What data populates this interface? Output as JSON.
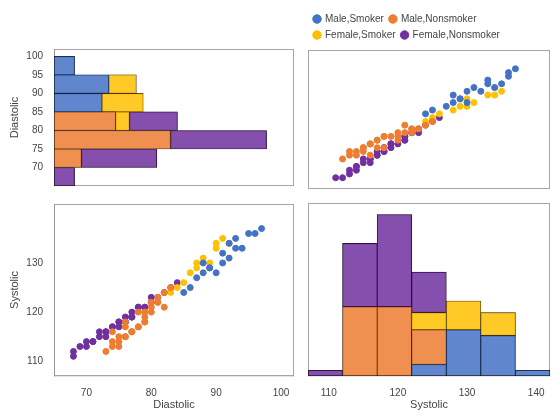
{
  "chart_data": [
    {
      "type": "histogram",
      "orientation": "horizontal",
      "stacked": true,
      "bins": [
        65,
        70,
        75,
        80,
        85,
        90,
        95,
        100
      ],
      "series": [
        {
          "color": "#4472C4",
          "values": [
            0,
            0,
            0,
            0,
            7,
            8,
            3
          ]
        },
        {
          "color": "#ED7D31",
          "values": [
            0,
            4,
            17,
            9,
            0,
            0,
            0
          ]
        },
        {
          "color": "#FFC000",
          "values": [
            0,
            0,
            0,
            2,
            6,
            4,
            0
          ]
        },
        {
          "color": "#7030A0",
          "values": [
            3,
            11,
            14,
            7,
            0,
            0,
            0
          ]
        }
      ],
      "ylabel": "Diastolic",
      "ylim": [
        65,
        102
      ],
      "yticks": [
        70,
        75,
        80,
        85,
        90,
        95,
        100
      ],
      "xlim": [
        0,
        35
      ],
      "tick_labels": "y",
      "grid": false
    },
    {
      "type": "scatter",
      "series": [
        {
          "name": "Male,Smoker",
          "color": "#4472C4",
          "x": [
            130,
            134,
            136,
            128,
            125,
            132,
            135,
            127,
            133,
            129,
            136,
            124,
            131,
            128,
            130,
            137,
            133,
            129
          ],
          "values": [
            88,
            92,
            95,
            90,
            86,
            91,
            93,
            87,
            94,
            89,
            96,
            85,
            92,
            88,
            91,
            97,
            93,
            89
          ]
        },
        {
          "name": "Male,Nonsmoker",
          "color": "#ED7D31",
          "x": [
            118,
            122,
            116,
            120,
            117,
            123,
            120,
            115,
            124,
            121,
            118,
            116,
            113,
            122,
            117,
            115,
            121,
            118,
            114,
            120,
            116,
            112,
            122,
            117,
            115,
            125,
            114,
            119,
            116,
            113
          ],
          "values": [
            76,
            80,
            74,
            78,
            76,
            81,
            79,
            75,
            82,
            80,
            79,
            77,
            74,
            81,
            78,
            76,
            82,
            79,
            75,
            80,
            77,
            73,
            81,
            78,
            76,
            83,
            74,
            79,
            77,
            75
          ]
        },
        {
          "name": "Female,Smoker",
          "color": "#FFC000",
          "x": [
            124,
            129,
            133,
            126,
            130,
            134,
            128,
            131,
            135,
            125,
            130,
            134
          ],
          "values": [
            83,
            87,
            90,
            85,
            89,
            92,
            86,
            88,
            91,
            84,
            87,
            90
          ]
        },
        {
          "name": "Female,Nonsmoker",
          "color": "#7030A0",
          "x": [
            116,
            120,
            118,
            123,
            112,
            116,
            121,
            118,
            124,
            114,
            118,
            121,
            117,
            113,
            125,
            119,
            115,
            122,
            119,
            114,
            117,
            121,
            115,
            111,
            119,
            123,
            117,
            113,
            121,
            116,
            122,
            118,
            114,
            126,
            119
          ],
          "values": [
            72,
            77,
            75,
            80,
            68,
            73,
            79,
            76,
            82,
            70,
            75,
            78,
            74,
            69,
            83,
            77,
            72,
            80,
            76,
            71,
            74,
            79,
            73,
            68,
            77,
            81,
            75,
            70,
            78,
            73,
            80,
            76,
            71,
            84,
            77
          ]
        }
      ],
      "xlim": [
        107,
        142
      ],
      "ylim": [
        65,
        102
      ],
      "tick_labels": false,
      "legend": "upper left",
      "grid": false
    },
    {
      "type": "scatter",
      "series": [
        {
          "color": "#4472C4",
          "x": [
            88,
            92,
            95,
            90,
            86,
            91,
            93,
            87,
            94,
            89,
            96,
            85,
            92,
            88,
            91,
            97,
            93,
            89
          ],
          "values": [
            130,
            134,
            136,
            128,
            125,
            132,
            135,
            127,
            133,
            129,
            136,
            124,
            131,
            128,
            130,
            137,
            133,
            129
          ]
        },
        {
          "color": "#ED7D31",
          "x": [
            76,
            80,
            74,
            78,
            76,
            81,
            79,
            75,
            82,
            80,
            79,
            77,
            74,
            81,
            78,
            76,
            82,
            79,
            75,
            80,
            77,
            73,
            81,
            78,
            76,
            83,
            74,
            79,
            77,
            75
          ],
          "values": [
            118,
            122,
            116,
            120,
            117,
            123,
            120,
            115,
            124,
            121,
            118,
            116,
            113,
            122,
            117,
            115,
            121,
            118,
            114,
            120,
            116,
            112,
            122,
            117,
            115,
            125,
            114,
            119,
            116,
            113
          ]
        },
        {
          "color": "#FFC000",
          "x": [
            83,
            87,
            90,
            85,
            89,
            92,
            86,
            88,
            91,
            84,
            87,
            90
          ],
          "values": [
            124,
            129,
            133,
            126,
            130,
            134,
            128,
            131,
            135,
            125,
            130,
            134
          ]
        },
        {
          "color": "#7030A0",
          "x": [
            72,
            77,
            75,
            80,
            68,
            73,
            79,
            76,
            82,
            70,
            75,
            78,
            74,
            69,
            83,
            77,
            72,
            80,
            76,
            71,
            74,
            79,
            73,
            68,
            77,
            81,
            75,
            70,
            78,
            73,
            80,
            76,
            71,
            84,
            77
          ],
          "values": [
            116,
            120,
            118,
            123,
            112,
            116,
            121,
            118,
            124,
            114,
            118,
            121,
            117,
            113,
            125,
            119,
            115,
            122,
            119,
            114,
            117,
            121,
            115,
            111,
            119,
            123,
            117,
            113,
            121,
            116,
            122,
            118,
            114,
            126,
            119
          ]
        }
      ],
      "xlabel": "Diastolic",
      "ylabel": "Systolic",
      "xlim": [
        65,
        102
      ],
      "xticks": [
        70,
        80,
        90,
        100
      ],
      "ylim": [
        107,
        142
      ],
      "yticks": [
        110,
        120,
        130
      ],
      "grid": false
    },
    {
      "type": "histogram",
      "stacked": true,
      "bins": [
        107,
        112,
        117,
        122,
        127,
        132,
        137,
        142
      ],
      "series": [
        {
          "color": "#4472C4",
          "values": [
            0,
            0,
            0,
            2,
            8,
            7,
            1
          ]
        },
        {
          "color": "#ED7D31",
          "values": [
            0,
            12,
            12,
            6,
            0,
            0,
            0
          ]
        },
        {
          "color": "#FFC000",
          "values": [
            0,
            0,
            0,
            3,
            5,
            4,
            0
          ]
        },
        {
          "color": "#7030A0",
          "values": [
            1,
            11,
            16,
            7,
            0,
            0,
            0
          ]
        }
      ],
      "xlabel": "Systolic",
      "xlim": [
        107,
        142
      ],
      "xticks": [
        110,
        120,
        130,
        140
      ],
      "ylim": [
        0,
        30
      ],
      "tick_labels": "x",
      "grid": false
    }
  ]
}
